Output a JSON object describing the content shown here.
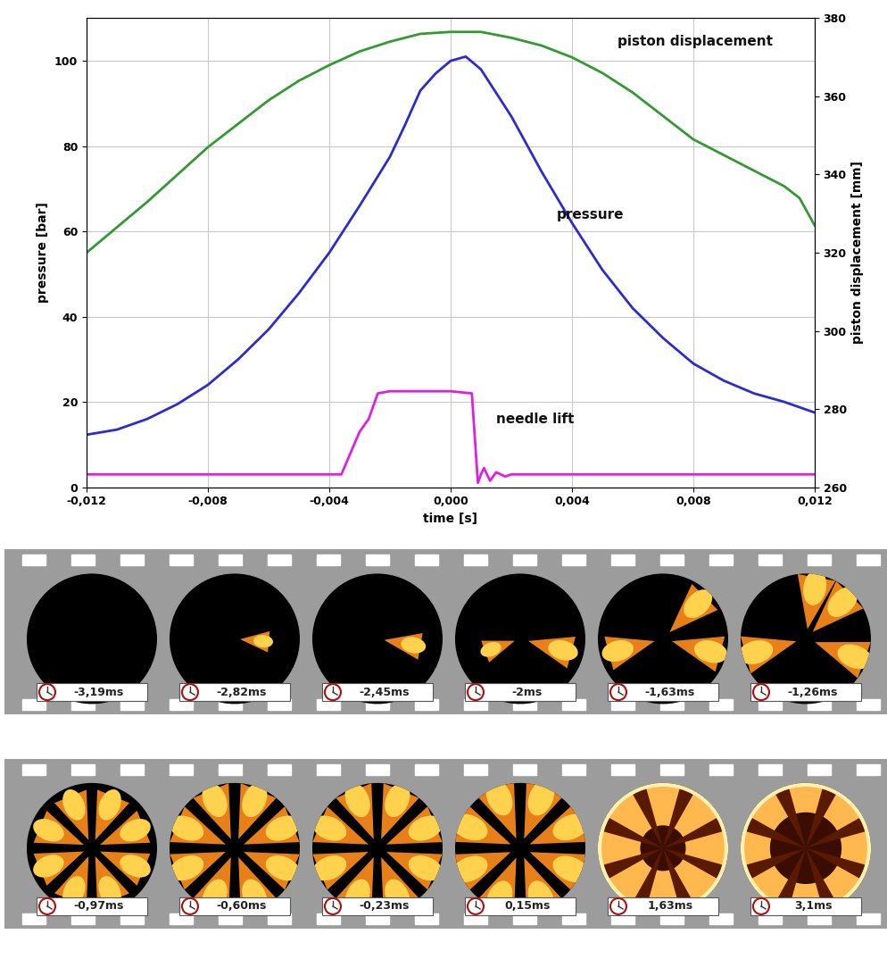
{
  "chart_data": {
    "type": "line",
    "x_label": "time [s]",
    "y_label": "pressure [bar]",
    "y2_label": "piston displacement [mm]",
    "xlim": [
      -0.012,
      0.012
    ],
    "xticks": [
      {
        "value": -0.012,
        "label": "-0,012"
      },
      {
        "value": -0.008,
        "label": "-0,008"
      },
      {
        "value": -0.004,
        "label": "-0,004"
      },
      {
        "value": 0.0,
        "label": "0,000"
      },
      {
        "value": 0.004,
        "label": "0,004"
      },
      {
        "value": 0.008,
        "label": "0,008"
      },
      {
        "value": 0.012,
        "label": "0,012"
      }
    ],
    "ylim": [
      0,
      110
    ],
    "yticks": [
      0,
      20,
      40,
      60,
      80,
      100
    ],
    "y2lim": [
      260,
      380
    ],
    "y2ticks": [
      260,
      280,
      300,
      320,
      340,
      360,
      380
    ],
    "grid": true,
    "series": [
      {
        "name": "piston displacement",
        "color": "#339933",
        "axis": "y2",
        "x": [
          -0.012,
          -0.011,
          -0.01,
          -0.009,
          -0.008,
          -0.007,
          -0.006,
          -0.005,
          -0.004,
          -0.003,
          -0.002,
          -0.001,
          0.0,
          0.001,
          0.002,
          0.003,
          0.004,
          0.005,
          0.006,
          0.007,
          0.008,
          0.009,
          0.01,
          0.011,
          0.0115,
          0.012
        ],
        "values": [
          320,
          326.5,
          333,
          340,
          347,
          353,
          359,
          364,
          368,
          371.5,
          374,
          376,
          376.5,
          376.5,
          375,
          373,
          370,
          366,
          361,
          355,
          349,
          345,
          341,
          337,
          334,
          327
        ]
      },
      {
        "name": "pressure",
        "color": "#2b2bd0",
        "x": [
          -0.012,
          -0.011,
          -0.01,
          -0.009,
          -0.008,
          -0.007,
          -0.006,
          -0.005,
          -0.004,
          -0.003,
          -0.002,
          -0.0015,
          -0.001,
          -0.0005,
          0.0,
          0.0005,
          0.001,
          0.002,
          0.003,
          0.004,
          0.005,
          0.006,
          0.007,
          0.008,
          0.009,
          0.01,
          0.011,
          0.012
        ],
        "values": [
          12.3,
          13.5,
          16,
          19.5,
          24,
          30,
          37,
          45.5,
          55,
          66,
          77.5,
          85,
          93,
          97,
          100,
          101,
          98,
          87,
          74,
          62,
          51,
          42,
          35,
          29,
          25,
          22,
          20,
          17.5
        ]
      },
      {
        "name": "needle lift",
        "color": "#e020e0",
        "x": [
          -0.012,
          -0.0036,
          -0.0033,
          -0.003,
          -0.0027,
          -0.0024,
          -0.002,
          0.0,
          0.0007,
          0.0009,
          0.001,
          0.0011,
          0.0013,
          0.0015,
          0.0018,
          0.002,
          0.012
        ],
        "values": [
          3,
          3,
          8,
          13,
          16,
          22,
          22.5,
          22.5,
          22,
          1,
          3,
          4.5,
          1.5,
          3.5,
          2.5,
          3,
          3
        ]
      }
    ]
  },
  "film_strip": {
    "rows": [
      [
        "-3,19ms",
        "-2,82ms",
        "-2,45ms",
        "-2ms",
        "-1,63ms",
        "-1,26ms"
      ],
      [
        "-0,97ms",
        "-0,60ms",
        "-0,23ms",
        "0,15ms",
        "1,63ms",
        "3,1ms"
      ]
    ]
  }
}
